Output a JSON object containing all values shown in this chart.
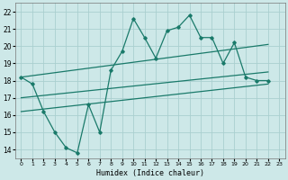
{
  "xlabel": "Humidex (Indice chaleur)",
  "bg_color": "#cde8e8",
  "grid_color": "#aacfcf",
  "line_color": "#1a7a6a",
  "xlim": [
    -0.5,
    23.5
  ],
  "ylim": [
    13.5,
    22.5
  ],
  "xticks": [
    0,
    1,
    2,
    3,
    4,
    5,
    6,
    7,
    8,
    9,
    10,
    11,
    12,
    13,
    14,
    15,
    16,
    17,
    18,
    19,
    20,
    21,
    22,
    23
  ],
  "yticks": [
    14,
    15,
    16,
    17,
    18,
    19,
    20,
    21,
    22
  ],
  "series1_x": [
    0,
    1,
    2,
    3,
    4,
    5,
    6,
    7,
    8,
    9,
    10,
    11,
    12,
    13,
    14,
    15,
    16,
    17,
    18,
    19,
    20,
    21,
    22
  ],
  "series1_y": [
    18.2,
    17.8,
    16.2,
    15.0,
    14.1,
    13.8,
    16.6,
    15.0,
    18.6,
    19.7,
    21.6,
    20.5,
    19.3,
    20.9,
    21.1,
    21.8,
    20.5,
    20.5,
    19.0,
    20.2,
    18.2,
    18.0,
    18.0
  ],
  "line2_x": [
    0,
    22
  ],
  "line2_y": [
    18.2,
    20.1
  ],
  "line3_x": [
    0,
    22
  ],
  "line3_y": [
    17.0,
    18.5
  ],
  "line4_x": [
    0,
    22
  ],
  "line4_y": [
    16.2,
    17.8
  ]
}
